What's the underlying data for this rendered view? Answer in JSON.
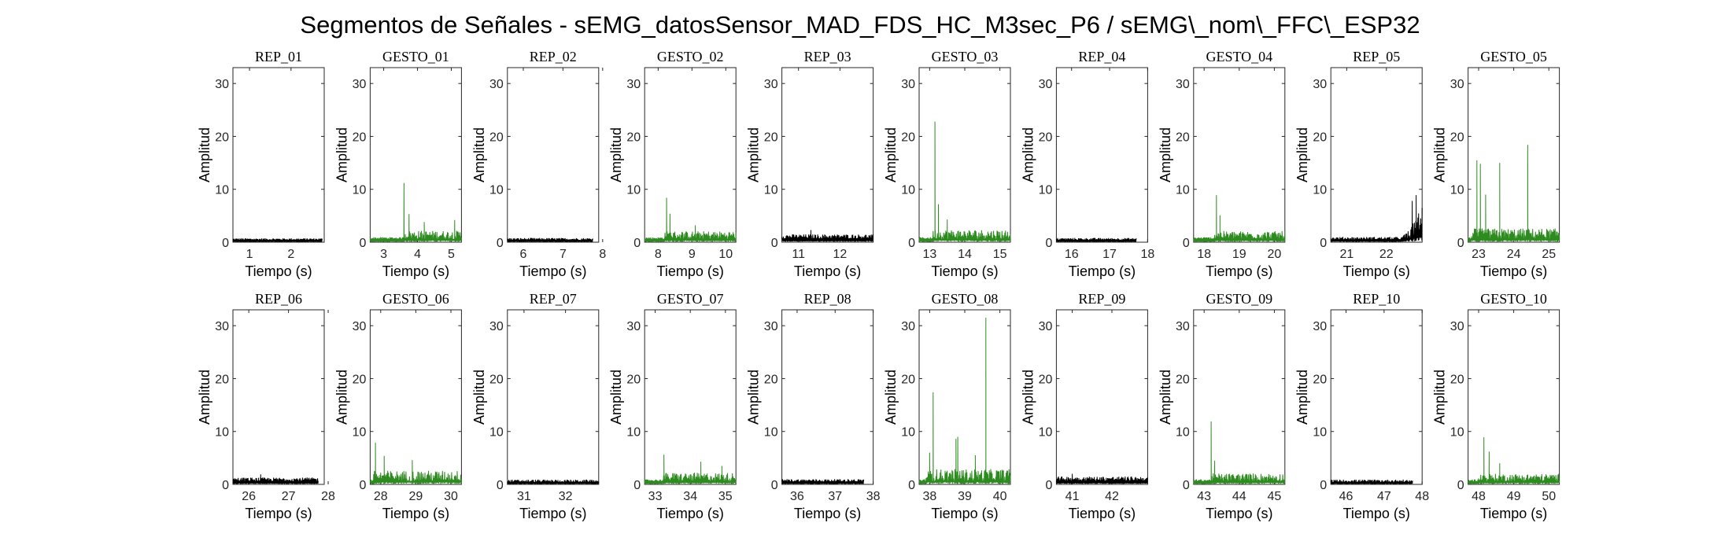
{
  "figure_title": "Segmentos de Señales - sEMG_datosSensor_MAD_FDS_HC_M3sec_P6 / sEMG\\_nom\\_FFC\\_ESP32",
  "colors": {
    "rep": "#000000",
    "gesto": "#2e8b20",
    "axis": "#262626"
  },
  "chart_data": [
    {
      "type": "line",
      "title": "REP_01",
      "xlabel": "Tiempo (s)",
      "ylabel": "Amplitud",
      "xlim": [
        0.6,
        2.8
      ],
      "ylim": [
        0,
        33
      ],
      "xticks": [
        "1",
        "2"
      ],
      "yticks": [
        "0",
        "10",
        "20",
        "30"
      ],
      "series": [
        {
          "color": "rep",
          "x_range": [
            0.6,
            2.75
          ],
          "baseline": 0.4,
          "noise": 0.35,
          "spikes": []
        }
      ]
    },
    {
      "type": "line",
      "title": "GESTO_01",
      "xlabel": "Tiempo (s)",
      "ylabel": "Amplitud",
      "xlim": [
        2.6,
        5.3
      ],
      "ylim": [
        0,
        33
      ],
      "xticks": [
        "3",
        "4",
        "5"
      ],
      "yticks": [
        "0",
        "10",
        "20",
        "30"
      ],
      "series": [
        {
          "color": "gesto",
          "x_range": [
            2.6,
            5.3
          ],
          "baseline": 0.6,
          "noise": 1.6,
          "noise_start": 3.6,
          "spikes": [
            [
              3.6,
              11.2
            ],
            [
              3.75,
              5.3
            ],
            [
              4.2,
              3.8
            ],
            [
              5.1,
              4.2
            ]
          ]
        }
      ]
    },
    {
      "type": "line",
      "title": "REP_02",
      "xlabel": "Tiempo (s)",
      "ylabel": "Amplitud",
      "xlim": [
        5.6,
        7.9
      ],
      "ylim": [
        0,
        33
      ],
      "xticks": [
        "6",
        "7",
        "8"
      ],
      "yticks": [
        "0",
        "10",
        "20",
        "30"
      ],
      "series": [
        {
          "color": "rep",
          "x_range": [
            5.6,
            7.75
          ],
          "baseline": 0.4,
          "noise": 0.4,
          "spikes": []
        }
      ]
    },
    {
      "type": "line",
      "title": "GESTO_02",
      "xlabel": "Tiempo (s)",
      "ylabel": "Amplitud",
      "xlim": [
        7.6,
        10.3
      ],
      "ylim": [
        0,
        33
      ],
      "xticks": [
        "8",
        "9",
        "10"
      ],
      "yticks": [
        "0",
        "10",
        "20",
        "30"
      ],
      "series": [
        {
          "color": "gesto",
          "x_range": [
            7.6,
            10.3
          ],
          "baseline": 0.6,
          "noise": 1.5,
          "noise_start": 8.2,
          "spikes": [
            [
              8.25,
              8.4
            ],
            [
              8.35,
              5.4
            ],
            [
              9.1,
              3.2
            ]
          ]
        }
      ]
    },
    {
      "type": "line",
      "title": "REP_03",
      "xlabel": "Tiempo (s)",
      "ylabel": "Amplitud",
      "xlim": [
        10.6,
        12.8
      ],
      "ylim": [
        0,
        33
      ],
      "xticks": [
        "11",
        "12"
      ],
      "yticks": [
        "0",
        "10",
        "20",
        "30"
      ],
      "series": [
        {
          "color": "rep",
          "x_range": [
            10.6,
            12.8
          ],
          "baseline": 0.7,
          "noise": 0.8,
          "spikes": [
            [
              11.3,
              2.3
            ]
          ]
        }
      ]
    },
    {
      "type": "line",
      "title": "GESTO_03",
      "xlabel": "Tiempo (s)",
      "ylabel": "Amplitud",
      "xlim": [
        12.7,
        15.3
      ],
      "ylim": [
        0,
        33
      ],
      "xticks": [
        "13",
        "14",
        "15"
      ],
      "yticks": [
        "0",
        "10",
        "20",
        "30"
      ],
      "series": [
        {
          "color": "gesto",
          "x_range": [
            12.7,
            15.3
          ],
          "baseline": 0.6,
          "noise": 1.8,
          "noise_start": 13.1,
          "spikes": [
            [
              13.15,
              22.8
            ],
            [
              13.25,
              7.2
            ],
            [
              13.5,
              4.3
            ]
          ]
        }
      ]
    },
    {
      "type": "line",
      "title": "REP_04",
      "xlabel": "Tiempo (s)",
      "ylabel": "Amplitud",
      "xlim": [
        15.6,
        18.0
      ],
      "ylim": [
        0,
        33
      ],
      "xticks": [
        "16",
        "17",
        "18"
      ],
      "yticks": [
        "0",
        "10",
        "20",
        "30"
      ],
      "series": [
        {
          "color": "rep",
          "x_range": [
            15.6,
            17.7
          ],
          "baseline": 0.4,
          "noise": 0.4,
          "spikes": []
        }
      ]
    },
    {
      "type": "line",
      "title": "GESTO_04",
      "xlabel": "Tiempo (s)",
      "ylabel": "Amplitud",
      "xlim": [
        17.7,
        20.3
      ],
      "ylim": [
        0,
        33
      ],
      "xticks": [
        "18",
        "19",
        "20"
      ],
      "yticks": [
        "0",
        "10",
        "20",
        "30"
      ],
      "series": [
        {
          "color": "gesto",
          "x_range": [
            17.7,
            20.3
          ],
          "baseline": 0.6,
          "noise": 1.5,
          "noise_start": 18.3,
          "spikes": [
            [
              18.35,
              8.9
            ],
            [
              18.45,
              5.1
            ]
          ]
        }
      ]
    },
    {
      "type": "line",
      "title": "REP_05",
      "xlabel": "Tiempo (s)",
      "ylabel": "Amplitud",
      "xlim": [
        20.6,
        22.9
      ],
      "ylim": [
        0,
        33
      ],
      "xticks": [
        "21",
        "22"
      ],
      "yticks": [
        "0",
        "10",
        "20",
        "30"
      ],
      "series": [
        {
          "color": "rep",
          "x_range": [
            20.6,
            22.9
          ],
          "baseline": 0.5,
          "noise": 0.5,
          "burst": [
            22.4,
            22.9,
            6.0
          ],
          "spikes": [
            [
              22.75,
              8.9
            ],
            [
              22.65,
              7.8
            ]
          ]
        }
      ]
    },
    {
      "type": "line",
      "title": "GESTO_05",
      "xlabel": "Tiempo (s)",
      "ylabel": "Amplitud",
      "xlim": [
        22.7,
        25.3
      ],
      "ylim": [
        0,
        33
      ],
      "xticks": [
        "23",
        "24",
        "25"
      ],
      "yticks": [
        "0",
        "10",
        "20",
        "30"
      ],
      "series": [
        {
          "color": "gesto",
          "x_range": [
            22.7,
            25.3
          ],
          "baseline": 0.6,
          "noise": 2.0,
          "noise_start": 22.8,
          "spikes": [
            [
              22.95,
              15.5
            ],
            [
              23.05,
              14.8
            ],
            [
              23.6,
              15.0
            ],
            [
              24.4,
              18.4
            ],
            [
              23.2,
              9.0
            ]
          ]
        }
      ]
    },
    {
      "type": "line",
      "title": "REP_06",
      "xlabel": "Tiempo (s)",
      "ylabel": "Amplitud",
      "xlim": [
        25.6,
        27.9
      ],
      "ylim": [
        0,
        33
      ],
      "xticks": [
        "26",
        "27",
        "28"
      ],
      "yticks": [
        "0",
        "10",
        "20",
        "30"
      ],
      "series": [
        {
          "color": "rep",
          "x_range": [
            25.6,
            27.75
          ],
          "baseline": 0.6,
          "noise": 0.7,
          "spikes": [
            [
              26.3,
              1.9
            ]
          ]
        }
      ]
    },
    {
      "type": "line",
      "title": "GESTO_06",
      "xlabel": "Tiempo (s)",
      "ylabel": "Amplitud",
      "xlim": [
        27.7,
        30.3
      ],
      "ylim": [
        0,
        33
      ],
      "xticks": [
        "28",
        "29",
        "30"
      ],
      "yticks": [
        "0",
        "10",
        "20",
        "30"
      ],
      "series": [
        {
          "color": "gesto",
          "x_range": [
            27.7,
            30.3
          ],
          "baseline": 0.6,
          "noise": 2.0,
          "noise_start": 27.8,
          "spikes": [
            [
              27.85,
              7.9
            ],
            [
              28.1,
              5.4
            ],
            [
              28.9,
              4.6
            ]
          ]
        }
      ]
    },
    {
      "type": "line",
      "title": "REP_07",
      "xlabel": "Tiempo (s)",
      "ylabel": "Amplitud",
      "xlim": [
        30.6,
        32.8
      ],
      "ylim": [
        0,
        33
      ],
      "xticks": [
        "31",
        "32"
      ],
      "yticks": [
        "0",
        "10",
        "20",
        "30"
      ],
      "series": [
        {
          "color": "rep",
          "x_range": [
            30.6,
            32.8
          ],
          "baseline": 0.4,
          "noise": 0.5,
          "spikes": []
        }
      ]
    },
    {
      "type": "line",
      "title": "GESTO_07",
      "xlabel": "Tiempo (s)",
      "ylabel": "Amplitud",
      "xlim": [
        32.7,
        35.3
      ],
      "ylim": [
        0,
        33
      ],
      "xticks": [
        "33",
        "34",
        "35"
      ],
      "yticks": [
        "0",
        "10",
        "20",
        "30"
      ],
      "series": [
        {
          "color": "gesto",
          "x_range": [
            32.7,
            35.3
          ],
          "baseline": 0.6,
          "noise": 1.6,
          "noise_start": 33.2,
          "spikes": [
            [
              33.25,
              5.6
            ],
            [
              34.3,
              4.3
            ],
            [
              34.9,
              3.5
            ]
          ]
        }
      ]
    },
    {
      "type": "line",
      "title": "REP_08",
      "xlabel": "Tiempo (s)",
      "ylabel": "Amplitud",
      "xlim": [
        35.6,
        38.0
      ],
      "ylim": [
        0,
        33
      ],
      "xticks": [
        "36",
        "37",
        "38"
      ],
      "yticks": [
        "0",
        "10",
        "20",
        "30"
      ],
      "series": [
        {
          "color": "rep",
          "x_range": [
            35.6,
            37.75
          ],
          "baseline": 0.5,
          "noise": 0.5,
          "spikes": []
        }
      ]
    },
    {
      "type": "line",
      "title": "GESTO_08",
      "xlabel": "Tiempo (s)",
      "ylabel": "Amplitud",
      "xlim": [
        37.7,
        40.3
      ],
      "ylim": [
        0,
        33
      ],
      "xticks": [
        "38",
        "39",
        "40"
      ],
      "yticks": [
        "0",
        "10",
        "20",
        "30"
      ],
      "series": [
        {
          "color": "gesto",
          "x_range": [
            37.7,
            40.3
          ],
          "baseline": 0.6,
          "noise": 2.3,
          "noise_start": 37.9,
          "spikes": [
            [
              38.1,
              17.4
            ],
            [
              38.75,
              8.6
            ],
            [
              38.8,
              9.0
            ],
            [
              39.6,
              31.5
            ],
            [
              38.0,
              6.0
            ],
            [
              39.3,
              5.5
            ]
          ]
        }
      ]
    },
    {
      "type": "line",
      "title": "REP_09",
      "xlabel": "Tiempo (s)",
      "ylabel": "Amplitud",
      "xlim": [
        40.6,
        42.9
      ],
      "ylim": [
        0,
        33
      ],
      "xticks": [
        "41",
        "42"
      ],
      "yticks": [
        "0",
        "10",
        "20",
        "30"
      ],
      "series": [
        {
          "color": "rep",
          "x_range": [
            40.6,
            42.9
          ],
          "baseline": 0.7,
          "noise": 0.8,
          "spikes": [
            [
              41.0,
              2.0
            ]
          ]
        }
      ]
    },
    {
      "type": "line",
      "title": "GESTO_09",
      "xlabel": "Tiempo (s)",
      "ylabel": "Amplitud",
      "xlim": [
        42.7,
        45.3
      ],
      "ylim": [
        0,
        33
      ],
      "xticks": [
        "43",
        "44",
        "45"
      ],
      "yticks": [
        "0",
        "10",
        "20",
        "30"
      ],
      "series": [
        {
          "color": "gesto",
          "x_range": [
            42.7,
            45.3
          ],
          "baseline": 0.6,
          "noise": 1.5,
          "noise_start": 43.2,
          "spikes": [
            [
              43.2,
              11.9
            ],
            [
              43.3,
              4.5
            ]
          ]
        }
      ]
    },
    {
      "type": "line",
      "title": "REP_10",
      "xlabel": "Tiempo (s)",
      "ylabel": "Amplitud",
      "xlim": [
        45.6,
        48.0
      ],
      "ylim": [
        0,
        33
      ],
      "xticks": [
        "46",
        "47",
        "48"
      ],
      "yticks": [
        "0",
        "10",
        "20",
        "30"
      ],
      "series": [
        {
          "color": "rep",
          "x_range": [
            45.6,
            47.75
          ],
          "baseline": 0.4,
          "noise": 0.5,
          "spikes": []
        }
      ]
    },
    {
      "type": "line",
      "title": "GESTO_10",
      "xlabel": "Tiempo (s)",
      "ylabel": "Amplitud",
      "xlim": [
        47.7,
        50.3
      ],
      "ylim": [
        0,
        33
      ],
      "xticks": [
        "48",
        "49",
        "50"
      ],
      "yticks": [
        "0",
        "10",
        "20",
        "30"
      ],
      "series": [
        {
          "color": "gesto",
          "x_range": [
            47.7,
            50.3
          ],
          "baseline": 0.6,
          "noise": 1.4,
          "noise_start": 48.0,
          "spikes": [
            [
              48.15,
              8.9
            ],
            [
              48.3,
              6.2
            ],
            [
              48.6,
              4.0
            ]
          ]
        }
      ]
    }
  ]
}
